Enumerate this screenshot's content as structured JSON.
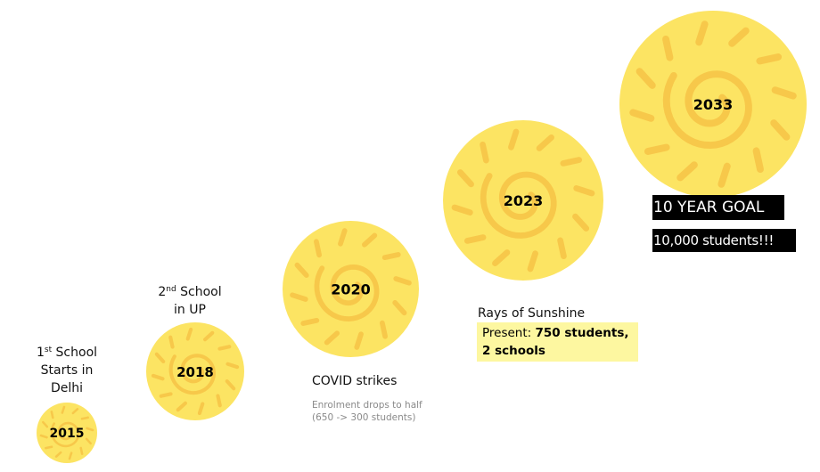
{
  "colors": {
    "sun_fill": "#fce463",
    "sun_ray": "#f7c84a",
    "highlight": "#fdf7a0"
  },
  "milestones": [
    {
      "year": "2015",
      "label_sup": "st",
      "label_line1_tail": " School",
      "label_line1_head": "1",
      "label_line2": "Starts in",
      "label_line3": "Delhi"
    },
    {
      "year": "2018",
      "label_line1_head": "2",
      "label_sup": "nd",
      "label_line1_tail": " School",
      "label_line2": "in UP"
    },
    {
      "year": "2020",
      "label": "COVID strikes",
      "note_line1": "Enrolment drops to half",
      "note_line2": "(650 -> 300 students)"
    },
    {
      "year": "2023",
      "label": "Rays of Sunshine",
      "present_prefix": "Present: ",
      "present_bold1": "750 students,",
      "present_bold2": "2 schools"
    },
    {
      "year": "2033",
      "goal_line1": "10 YEAR GOAL",
      "goal_line2": "10,000 students!!!"
    }
  ]
}
